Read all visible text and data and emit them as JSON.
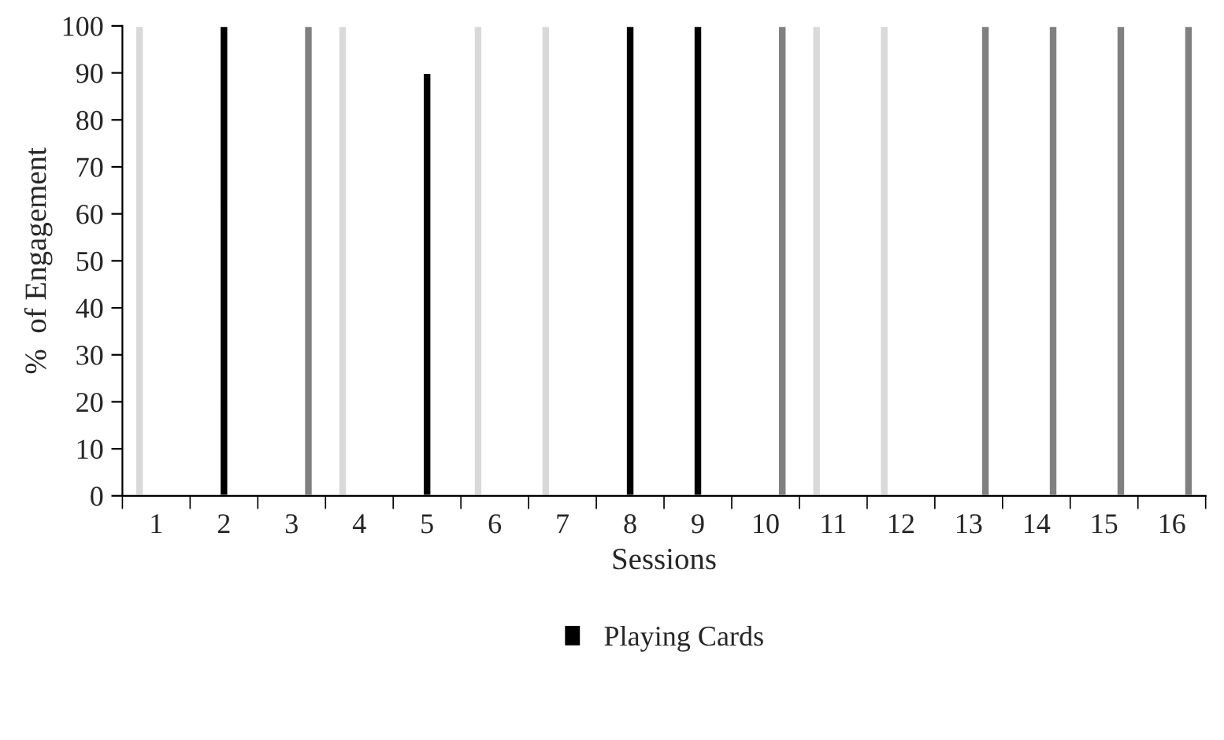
{
  "chart_data": {
    "type": "bar",
    "xlabel": "Sessions",
    "ylabel": "%  of Engagement",
    "categories": [
      "1",
      "2",
      "3",
      "4",
      "5",
      "6",
      "7",
      "8",
      "9",
      "10",
      "11",
      "12",
      "13",
      "14",
      "15",
      "16"
    ],
    "series": [
      {
        "color": "#d9d9d9",
        "values": [
          100,
          null,
          null,
          100,
          null,
          100,
          100,
          null,
          null,
          null,
          100,
          100,
          null,
          null,
          null,
          null
        ]
      },
      {
        "name": "Playing Cards",
        "color": "#000000",
        "values": [
          null,
          100,
          null,
          null,
          90,
          null,
          null,
          100,
          100,
          null,
          null,
          null,
          null,
          null,
          null,
          null
        ]
      },
      {
        "color": "#808080",
        "values": [
          null,
          null,
          100,
          null,
          null,
          null,
          null,
          null,
          null,
          100,
          null,
          null,
          100,
          100,
          100,
          100
        ]
      }
    ],
    "ylim": [
      0,
      100
    ],
    "yticks": [
      0,
      10,
      20,
      30,
      40,
      50,
      60,
      70,
      80,
      90,
      100
    ],
    "grid": false,
    "legend": "bottom"
  }
}
